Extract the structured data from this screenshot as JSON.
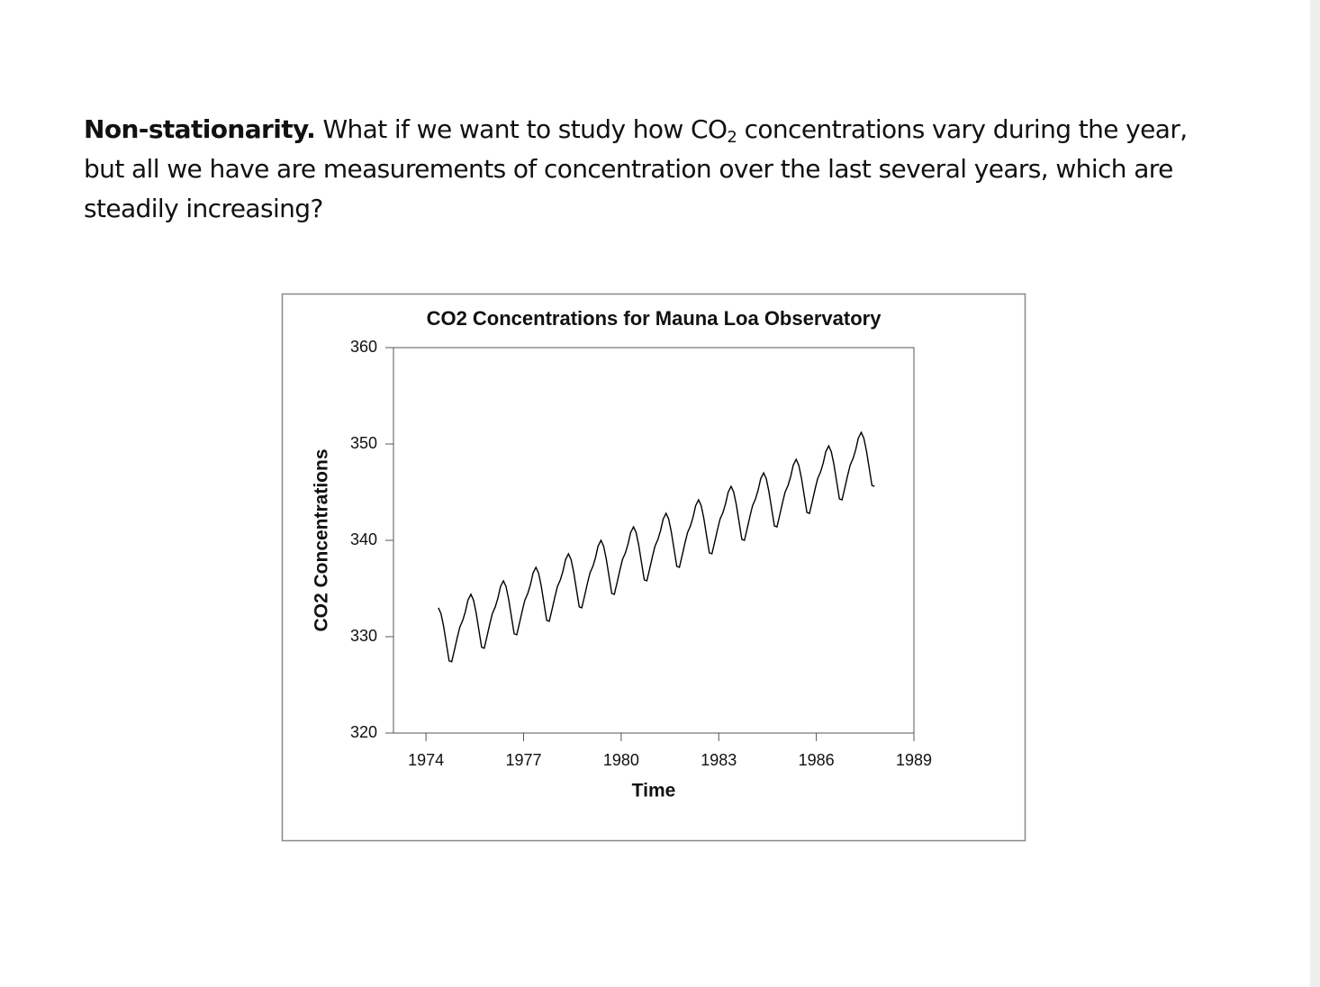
{
  "paragraph": {
    "lead": "Non-stationarity.",
    "text_1": "What if we want to study how CO",
    "subscript": "2",
    "text_2": "concentrations vary during the year, but all we have are measurements of concentration over the last several years, which are steadily increasing?"
  },
  "chart_data": {
    "type": "line",
    "title": "CO2 Concentrations for Mauna Loa Observatory",
    "x_label": "Time",
    "y_label": "CO2 Concentrations",
    "color": "#000000",
    "xlim": [
      1973,
      1989
    ],
    "xticks": [
      1974,
      1977,
      1980,
      1983,
      1986,
      1989
    ],
    "ylim": [
      320,
      360
    ],
    "yticks": [
      320,
      330,
      340,
      350,
      360
    ],
    "x": [
      1974.38,
      1974.46,
      1974.54,
      1974.63,
      1974.71,
      1974.79,
      1974.88,
      1974.96,
      1975.04,
      1975.13,
      1975.21,
      1975.29,
      1975.38,
      1975.46,
      1975.54,
      1975.63,
      1975.71,
      1975.79,
      1975.88,
      1975.96,
      1976.04,
      1976.13,
      1976.21,
      1976.29,
      1976.38,
      1976.46,
      1976.54,
      1976.63,
      1976.71,
      1976.79,
      1976.88,
      1976.96,
      1977.04,
      1977.13,
      1977.21,
      1977.29,
      1977.38,
      1977.46,
      1977.54,
      1977.63,
      1977.71,
      1977.79,
      1977.88,
      1977.96,
      1978.04,
      1978.13,
      1978.21,
      1978.29,
      1978.38,
      1978.46,
      1978.54,
      1978.63,
      1978.71,
      1978.79,
      1978.88,
      1978.96,
      1979.04,
      1979.13,
      1979.21,
      1979.29,
      1979.38,
      1979.46,
      1979.54,
      1979.63,
      1979.71,
      1979.79,
      1979.88,
      1979.96,
      1980.04,
      1980.13,
      1980.21,
      1980.29,
      1980.38,
      1980.46,
      1980.54,
      1980.63,
      1980.71,
      1980.79,
      1980.88,
      1980.96,
      1981.04,
      1981.13,
      1981.21,
      1981.29,
      1981.38,
      1981.46,
      1981.54,
      1981.63,
      1981.71,
      1981.79,
      1981.88,
      1981.96,
      1982.04,
      1982.13,
      1982.21,
      1982.29,
      1982.38,
      1982.46,
      1982.54,
      1982.63,
      1982.71,
      1982.79,
      1982.88,
      1982.96,
      1983.04,
      1983.13,
      1983.21,
      1983.29,
      1983.38,
      1983.46,
      1983.54,
      1983.63,
      1983.71,
      1983.79,
      1983.88,
      1983.96,
      1984.04,
      1984.13,
      1984.21,
      1984.29,
      1984.38,
      1984.46,
      1984.54,
      1984.63,
      1984.71,
      1984.79,
      1984.88,
      1984.96,
      1985.04,
      1985.13,
      1985.21,
      1985.29,
      1985.38,
      1985.46,
      1985.54,
      1985.63,
      1985.71,
      1985.79,
      1985.88,
      1985.96,
      1986.04,
      1986.13,
      1986.21,
      1986.29,
      1986.38,
      1986.46,
      1986.54,
      1986.63,
      1986.71,
      1986.79,
      1986.88,
      1986.96,
      1987.04,
      1987.13,
      1987.21,
      1987.29,
      1987.38,
      1987.46,
      1987.54,
      1987.63,
      1987.71,
      1987.79
    ],
    "values": [
      333.0,
      332.4,
      331.1,
      329.2,
      327.5,
      327.4,
      328.7,
      329.9,
      331.0,
      331.7,
      332.6,
      333.8,
      334.4,
      333.8,
      332.5,
      330.6,
      328.9,
      328.8,
      330.1,
      331.3,
      332.4,
      333.1,
      334.0,
      335.2,
      335.8,
      335.2,
      333.9,
      332.0,
      330.3,
      330.2,
      331.5,
      332.7,
      333.8,
      334.5,
      335.4,
      336.6,
      337.2,
      336.6,
      335.3,
      333.4,
      331.7,
      331.6,
      332.9,
      334.1,
      335.2,
      335.9,
      336.8,
      338.0,
      338.6,
      338.0,
      336.7,
      334.8,
      333.1,
      333.0,
      334.3,
      335.5,
      336.6,
      337.3,
      338.2,
      339.4,
      340.0,
      339.4,
      338.1,
      336.2,
      334.5,
      334.4,
      335.7,
      336.9,
      338.0,
      338.7,
      339.6,
      340.8,
      341.4,
      340.8,
      339.5,
      337.6,
      335.9,
      335.8,
      337.1,
      338.3,
      339.4,
      340.1,
      341.0,
      342.2,
      342.8,
      342.2,
      340.9,
      339.0,
      337.3,
      337.2,
      338.5,
      339.7,
      340.8,
      341.5,
      342.4,
      343.6,
      344.2,
      343.6,
      342.3,
      340.4,
      338.7,
      338.6,
      339.9,
      341.1,
      342.2,
      342.9,
      343.8,
      345.0,
      345.6,
      345.0,
      343.7,
      341.8,
      340.1,
      340.0,
      341.3,
      342.5,
      343.6,
      344.3,
      345.2,
      346.4,
      347.0,
      346.4,
      345.1,
      343.2,
      341.5,
      341.4,
      342.7,
      343.9,
      345.0,
      345.7,
      346.6,
      347.8,
      348.4,
      347.8,
      346.5,
      344.6,
      342.9,
      342.8,
      344.1,
      345.3,
      346.4,
      347.1,
      348.0,
      349.2,
      349.8,
      349.2,
      347.9,
      346.0,
      344.3,
      344.2,
      345.5,
      346.7,
      347.8,
      348.5,
      349.4,
      350.6,
      351.2,
      350.6,
      349.3,
      347.4,
      345.7,
      345.6
    ]
  }
}
